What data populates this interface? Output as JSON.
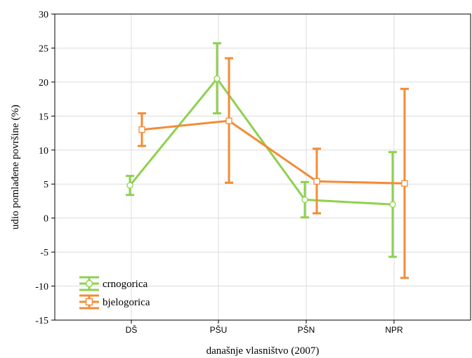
{
  "chart_data": {
    "type": "line",
    "categories": [
      "DŠ",
      "PŠU",
      "PŠN",
      "NPR"
    ],
    "xlabel": "današnje vlasništvo (2007)",
    "ylabel": "udio pomlađene površine (%)",
    "ylim": [
      -15,
      30
    ],
    "yticks": [
      -15,
      -10,
      -5,
      0,
      5,
      10,
      15,
      20,
      25,
      30
    ],
    "grid": true,
    "legend_position": "bottom-left",
    "series": [
      {
        "name": "crnogorica",
        "color": "#8ed14f",
        "marker": "circle",
        "values": [
          4.8,
          20.5,
          2.7,
          2.0
        ],
        "lower": [
          3.4,
          15.4,
          0.1,
          -5.7
        ],
        "upper": [
          6.2,
          25.7,
          5.3,
          9.7
        ]
      },
      {
        "name": "bjelogorica",
        "color": "#f28c38",
        "marker": "square",
        "values": [
          13.0,
          14.3,
          5.4,
          5.1
        ],
        "lower": [
          10.6,
          5.2,
          0.7,
          -8.8
        ],
        "upper": [
          15.4,
          23.5,
          10.2,
          19.0
        ]
      }
    ]
  }
}
